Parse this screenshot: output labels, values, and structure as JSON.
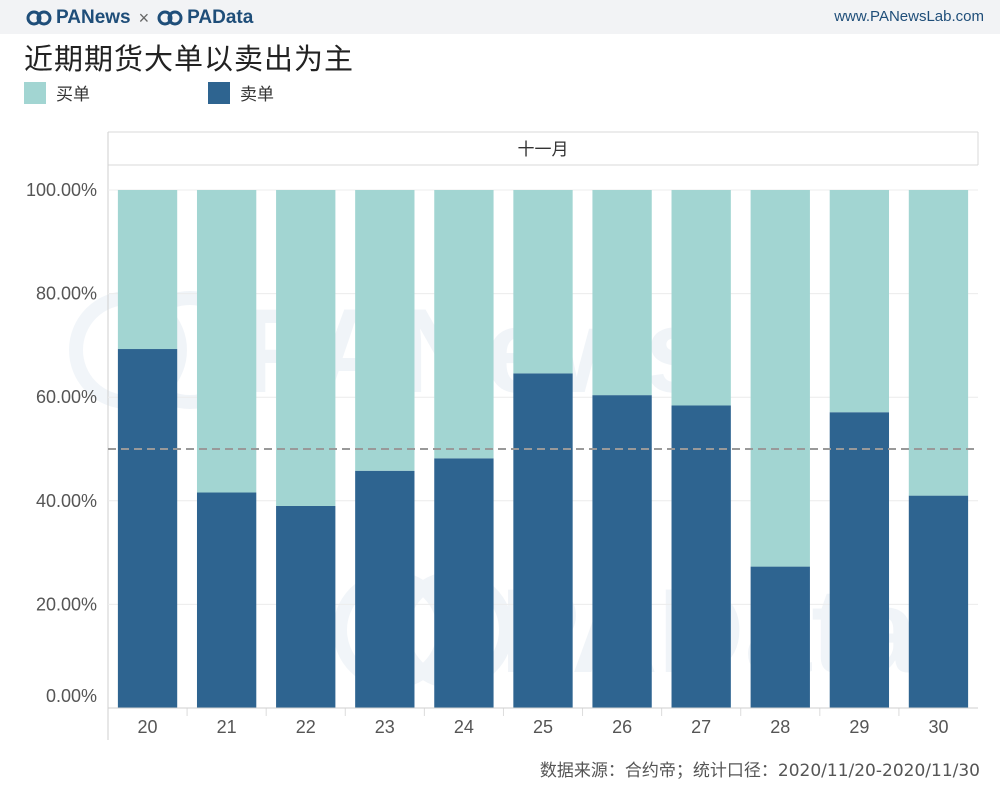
{
  "header": {
    "brand_left": "PANews",
    "brand_sep": "×",
    "brand_right": "PAData",
    "site": "www.PANewsLab.com"
  },
  "title": "近期期货大单以卖出为主",
  "legend": [
    {
      "label": "买单",
      "color": "#a2d5d2"
    },
    {
      "label": "卖单",
      "color": "#2e6490"
    }
  ],
  "source": "数据来源：合约帝；统计口径：2020/11/20-2020/11/30",
  "chart_data": {
    "type": "bar",
    "stacked": true,
    "panel_label": "十一月",
    "categories": [
      "20",
      "21",
      "22",
      "23",
      "24",
      "25",
      "26",
      "27",
      "28",
      "29",
      "30"
    ],
    "series": [
      {
        "name": "卖单",
        "color": "#2e6490",
        "values": [
          69.3,
          41.6,
          39.0,
          45.8,
          48.2,
          64.6,
          60.4,
          58.4,
          27.3,
          57.1,
          41.0
        ]
      },
      {
        "name": "买单",
        "color": "#a2d5d2",
        "values": [
          30.7,
          58.4,
          61.0,
          54.2,
          51.8,
          35.4,
          39.6,
          41.6,
          72.7,
          42.9,
          59.0
        ]
      }
    ],
    "y_ticks": [
      "0.00%",
      "20.00%",
      "40.00%",
      "60.00%",
      "80.00%",
      "100.00%"
    ],
    "ylim": [
      0,
      100
    ],
    "reference_line": 50,
    "grid": true
  }
}
